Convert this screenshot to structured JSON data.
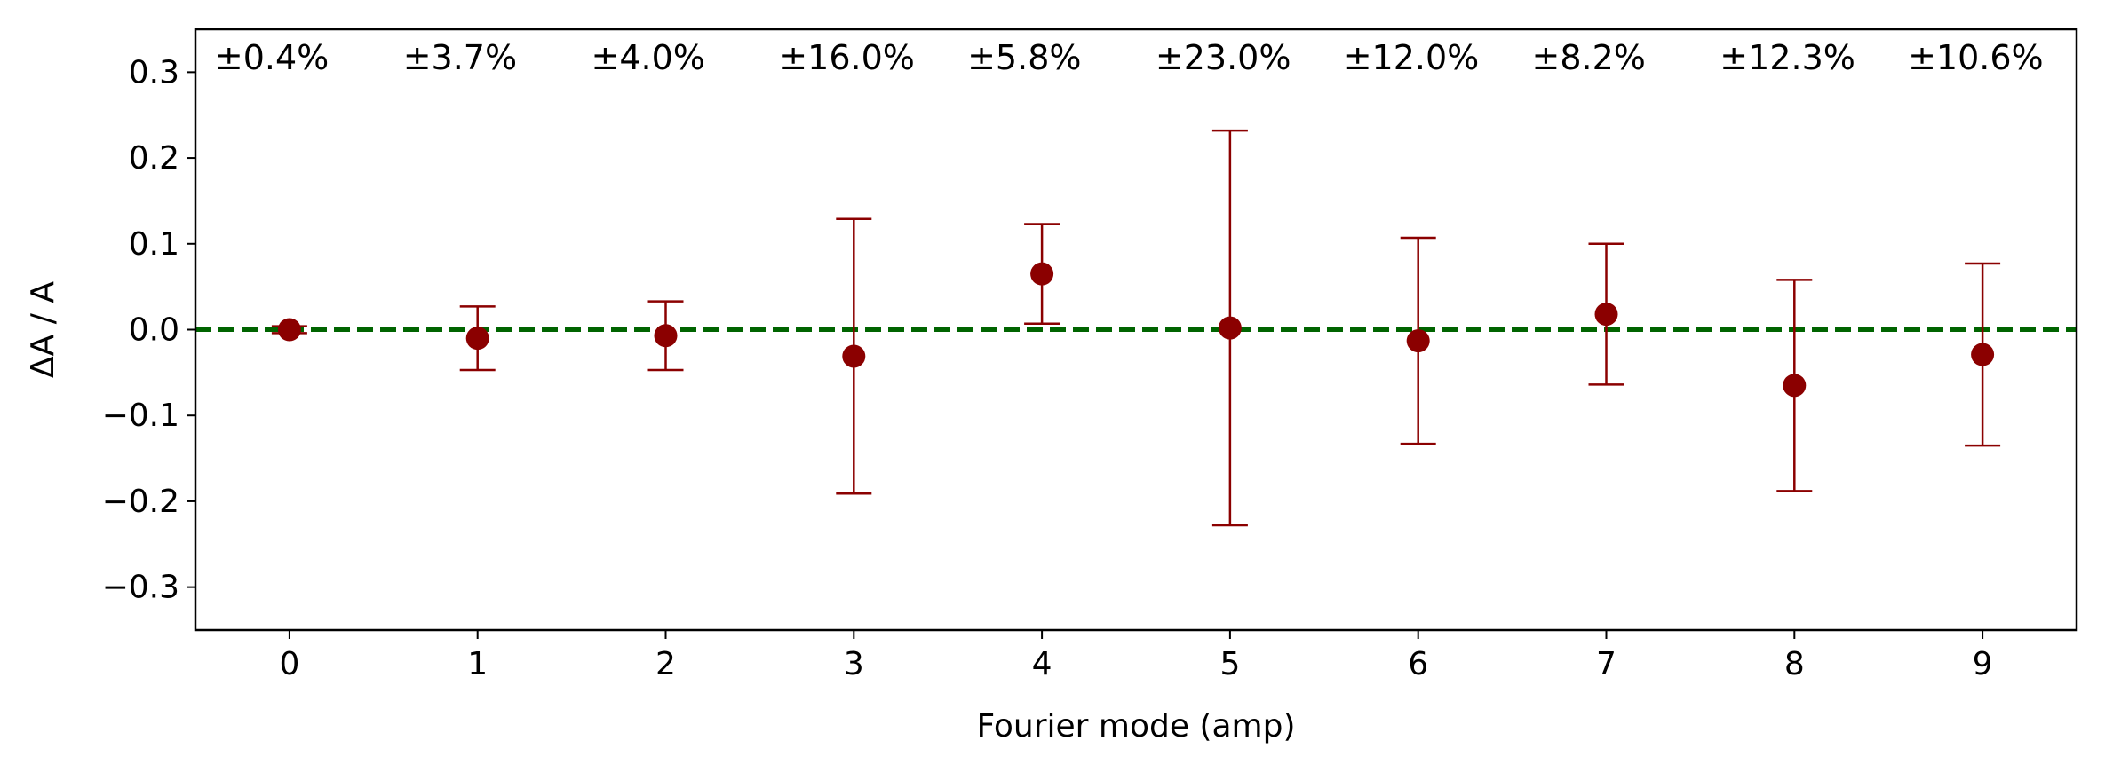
{
  "chart_data": {
    "type": "scatter",
    "title": "",
    "xlabel": "Fourier mode (amp)",
    "ylabel": "ΔA / A",
    "xlim": [
      -0.5,
      9.5
    ],
    "ylim": [
      -0.35,
      0.35
    ],
    "xticks": [
      0,
      1,
      2,
      3,
      4,
      5,
      6,
      7,
      8,
      9
    ],
    "yticks": [
      -0.3,
      -0.2,
      -0.1,
      0.0,
      0.1,
      0.2,
      0.3
    ],
    "ytick_labels": [
      "−0.3",
      "−0.2",
      "−0.1",
      "0.0",
      "0.1",
      "0.2",
      "0.3"
    ],
    "grid": false,
    "reference_line": {
      "y": 0.0,
      "style": "dashed",
      "color": "#006400"
    },
    "marker_color": "#8b0000",
    "x": [
      0,
      1,
      2,
      3,
      4,
      5,
      6,
      7,
      8,
      9
    ],
    "y": [
      0.0,
      -0.01,
      -0.007,
      -0.031,
      0.065,
      0.002,
      -0.013,
      0.018,
      -0.065,
      -0.029
    ],
    "yerr": [
      0.004,
      0.037,
      0.04,
      0.16,
      0.058,
      0.23,
      0.12,
      0.082,
      0.123,
      0.106
    ],
    "annotations": [
      "±0.4%",
      "±3.7%",
      "±4.0%",
      "±16.0%",
      "±5.8%",
      "±23.0%",
      "±12.0%",
      "±8.2%",
      "±12.3%",
      "±10.6%"
    ]
  }
}
